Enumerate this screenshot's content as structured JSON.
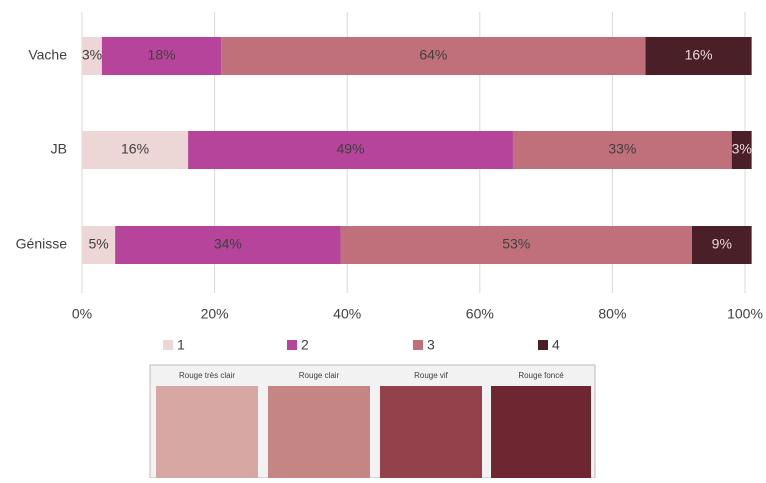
{
  "chart_data": {
    "type": "stacked-bar-horizontal",
    "categories": [
      "Vache",
      "JB",
      "Génisse"
    ],
    "series": [
      {
        "name": "1",
        "color": "#ecd6d6",
        "values": [
          3,
          16,
          5
        ],
        "value_labels": [
          "3%",
          "16%",
          "5%"
        ]
      },
      {
        "name": "2",
        "color": "#b5449a",
        "values": [
          18,
          49,
          34
        ],
        "value_labels": [
          "18%",
          "49%",
          "34%"
        ]
      },
      {
        "name": "3",
        "color": "#c0707a",
        "values": [
          64,
          33,
          53
        ],
        "value_labels": [
          "64%",
          "33%",
          "53%"
        ]
      },
      {
        "name": "4",
        "color": "#4a1f27",
        "values": [
          16,
          3,
          9
        ],
        "value_labels": [
          "16%",
          "3%",
          "9%"
        ]
      }
    ],
    "xlim": [
      0,
      100
    ],
    "xticks": [
      {
        "value": 0,
        "label": "0%"
      },
      {
        "value": 20,
        "label": "20%"
      },
      {
        "value": 40,
        "label": "40%"
      },
      {
        "value": 60,
        "label": "60%"
      },
      {
        "value": 80,
        "label": "80%"
      },
      {
        "value": 100,
        "label": "100%"
      }
    ],
    "grid": true,
    "legend": "bottom"
  },
  "swatches": {
    "labels": [
      "Rouge très clair",
      "Rouge clair",
      "Rouge vif",
      "Rouge foncé"
    ]
  }
}
